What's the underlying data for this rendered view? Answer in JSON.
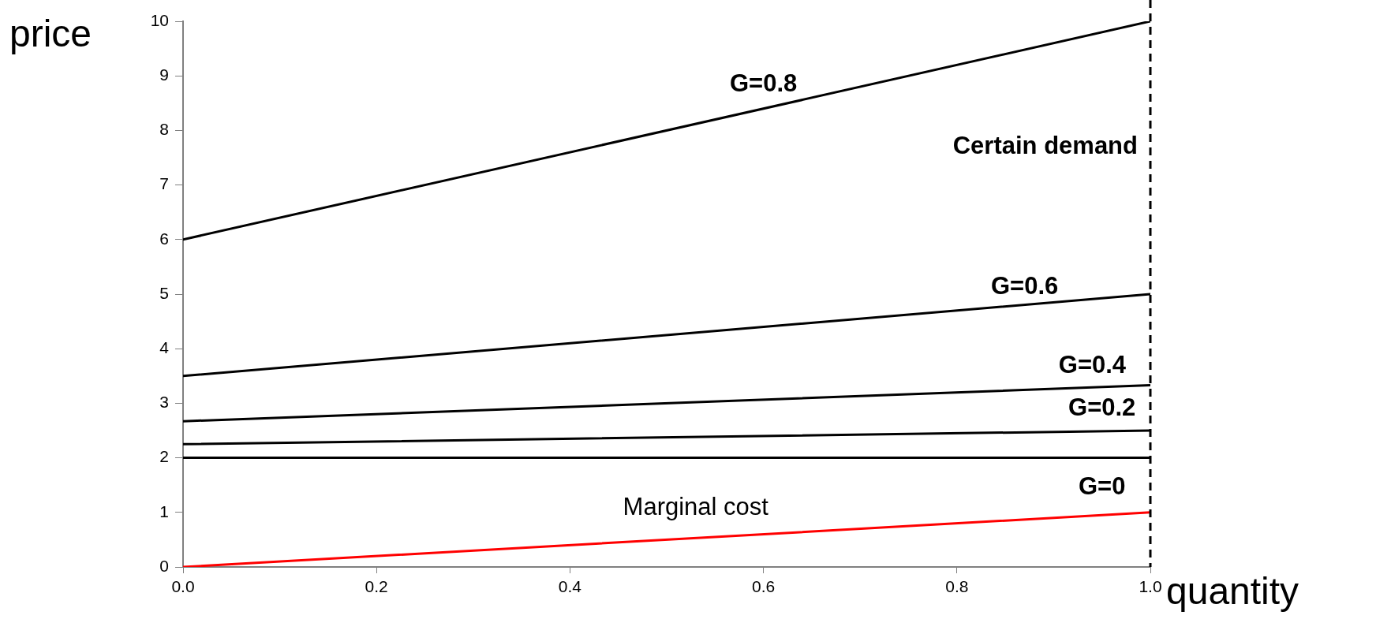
{
  "chart_data": {
    "type": "line",
    "xlabel": "quantity",
    "ylabel": "price",
    "marker": "none",
    "line_style": "solid",
    "legend": false,
    "grid": false,
    "x": [
      0,
      1
    ],
    "series": [
      {
        "name": "G=0.8",
        "color": "#000000",
        "values": [
          6,
          10
        ]
      },
      {
        "name": "G=0.6",
        "color": "#000000",
        "values": [
          3.5,
          5
        ]
      },
      {
        "name": "G=0.4",
        "color": "#000000",
        "values": [
          2.67,
          3.33
        ]
      },
      {
        "name": "G=0.2",
        "color": "#000000",
        "values": [
          2.25,
          2.5
        ]
      },
      {
        "name": "G=0",
        "color": "#000000",
        "values": [
          2,
          2
        ]
      },
      {
        "name": "Marginal cost",
        "color": "#ff0000",
        "values": [
          0,
          1
        ]
      }
    ],
    "xlim": [
      0,
      1
    ],
    "ylim": [
      0,
      10
    ],
    "xticks": [
      {
        "value": 0,
        "label": "0.0"
      },
      {
        "value": 0.2,
        "label": "0.2"
      },
      {
        "value": 0.4,
        "label": "0.4"
      },
      {
        "value": 0.6,
        "label": "0.6"
      },
      {
        "value": 0.8,
        "label": "0.8"
      },
      {
        "value": 1,
        "label": "1.0"
      }
    ],
    "yticks": [
      0,
      1,
      2,
      3,
      4,
      5,
      6,
      7,
      8,
      9,
      10
    ],
    "ref_lines": [
      {
        "axis": "x",
        "value": 1,
        "label": "Certain demand",
        "color": "#000000",
        "line_style": "dashed"
      }
    ]
  }
}
